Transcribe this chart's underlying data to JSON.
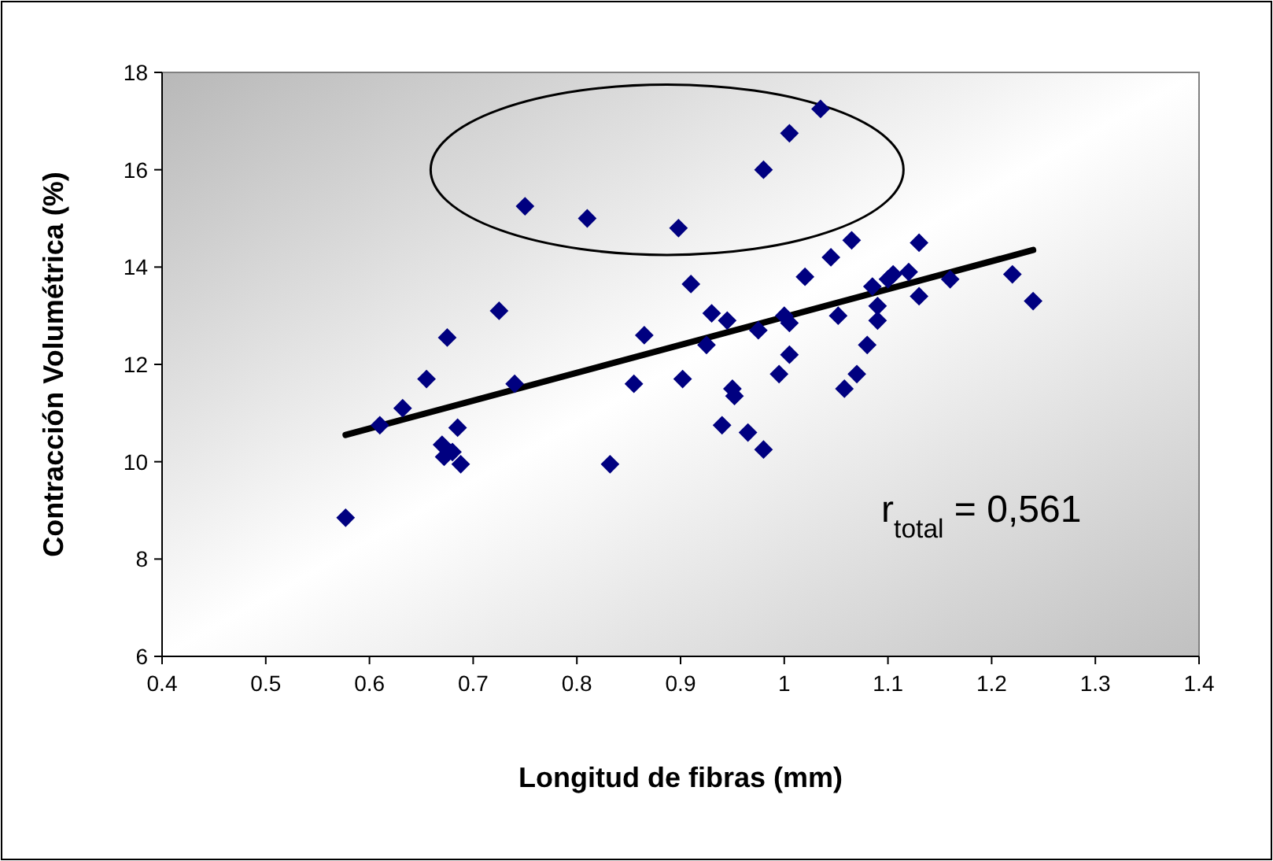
{
  "chart_data": {
    "type": "scatter",
    "xlabel": "Longitud de fibras (mm)",
    "ylabel": "Contracción Volumétrica (%)",
    "xlim": [
      0.4,
      1.4
    ],
    "xticks": [
      0.4,
      0.5,
      0.6,
      0.7,
      0.8,
      0.9,
      1,
      1.1,
      1.2,
      1.3,
      1.4
    ],
    "ylim": [
      6,
      18
    ],
    "yticks": [
      6,
      8,
      10,
      12,
      14,
      16,
      18
    ],
    "grid": false,
    "marker": "diamond",
    "series": [
      {
        "color": "#000080",
        "x": [
          0.577,
          0.61,
          0.632,
          0.655,
          0.67,
          0.672,
          0.675,
          0.68,
          0.685,
          0.688,
          0.725,
          0.74,
          0.75,
          0.81,
          0.832,
          0.855,
          0.865,
          0.898,
          0.902,
          0.91,
          0.925,
          0.93,
          0.94,
          0.945,
          0.95,
          0.952,
          0.965,
          0.975,
          0.98,
          0.98,
          0.995,
          1.0,
          1.005,
          1.005,
          1.005,
          1.02,
          1.035,
          1.045,
          1.052,
          1.058,
          1.065,
          1.07,
          1.08,
          1.085,
          1.09,
          1.09,
          1.1,
          1.105,
          1.12,
          1.13,
          1.13,
          1.16,
          1.22,
          1.24
        ],
        "values": [
          8.85,
          10.75,
          11.1,
          11.7,
          10.35,
          10.1,
          12.55,
          10.2,
          10.7,
          9.95,
          13.1,
          11.6,
          15.25,
          15.0,
          9.95,
          11.6,
          12.6,
          14.8,
          11.7,
          13.65,
          12.4,
          13.05,
          10.75,
          12.9,
          11.5,
          11.35,
          10.6,
          12.7,
          10.25,
          16.0,
          11.8,
          13.0,
          12.2,
          16.75,
          12.85,
          13.8,
          17.25,
          14.2,
          13.0,
          11.5,
          14.55,
          11.8,
          12.4,
          13.6,
          12.9,
          13.2,
          13.75,
          13.85,
          13.9,
          13.4,
          14.5,
          13.75,
          13.85,
          13.3
        ]
      },
      {
        "type": "line",
        "color": "#000000",
        "marker": "none",
        "x": [
          0.577,
          1.24
        ],
        "values": [
          10.55,
          14.35
        ]
      }
    ],
    "annotations": [
      "r$_{total}$ = 0,561"
    ]
  }
}
